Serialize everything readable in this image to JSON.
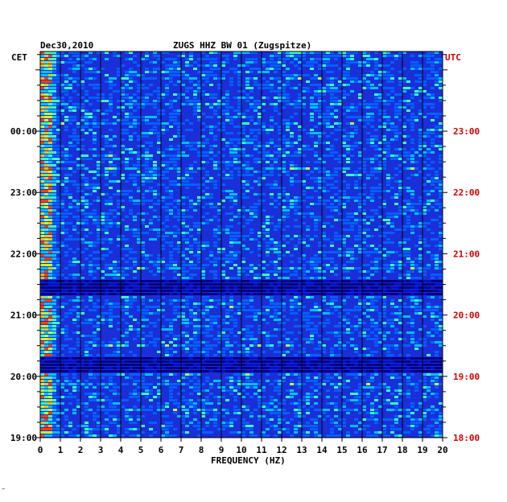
{
  "header": {
    "date": "Dec30,2010",
    "station_title": "ZUGS HHZ BW 01 (Zugspitze)",
    "left_timezone": "CET",
    "right_timezone": "UTC"
  },
  "corner_mark": "‴",
  "colors": {
    "background_blue": "#1a2fd8",
    "utc_label": "#cc0000",
    "axis": "#000000",
    "grid": "#000000"
  },
  "chart_data": {
    "type": "heatmap",
    "title": "ZUGS HHZ BW 01 (Zugspitze)",
    "xlabel": "FREQUENCY (HZ)",
    "xlim": [
      0,
      20
    ],
    "x_ticks": [
      "0",
      "1",
      "2",
      "3",
      "4",
      "5",
      "6",
      "7",
      "8",
      "9",
      "10",
      "11",
      "12",
      "13",
      "14",
      "15",
      "16",
      "17",
      "18",
      "19",
      "20"
    ],
    "y_left_label": "CET",
    "y_left_ticks": [
      "19:00",
      "20:00",
      "21:00",
      "22:00",
      "23:00",
      "00:00"
    ],
    "y_right_label": "UTC",
    "y_right_ticks": [
      "18:00",
      "19:00",
      "20:00",
      "21:00",
      "22:00",
      "23:00"
    ],
    "y_tick_values_utc_hours": [
      18,
      19,
      20,
      21,
      22,
      23
    ],
    "ylim_utc_hours": [
      18,
      24.3
    ],
    "grid": true,
    "colormap": [
      "#000080",
      "#0010c8",
      "#1a2fd8",
      "#0060ff",
      "#00c0ff",
      "#40ffc0",
      "#c0ff40",
      "#ffc000",
      "#ff4000",
      "#800000"
    ]
  }
}
